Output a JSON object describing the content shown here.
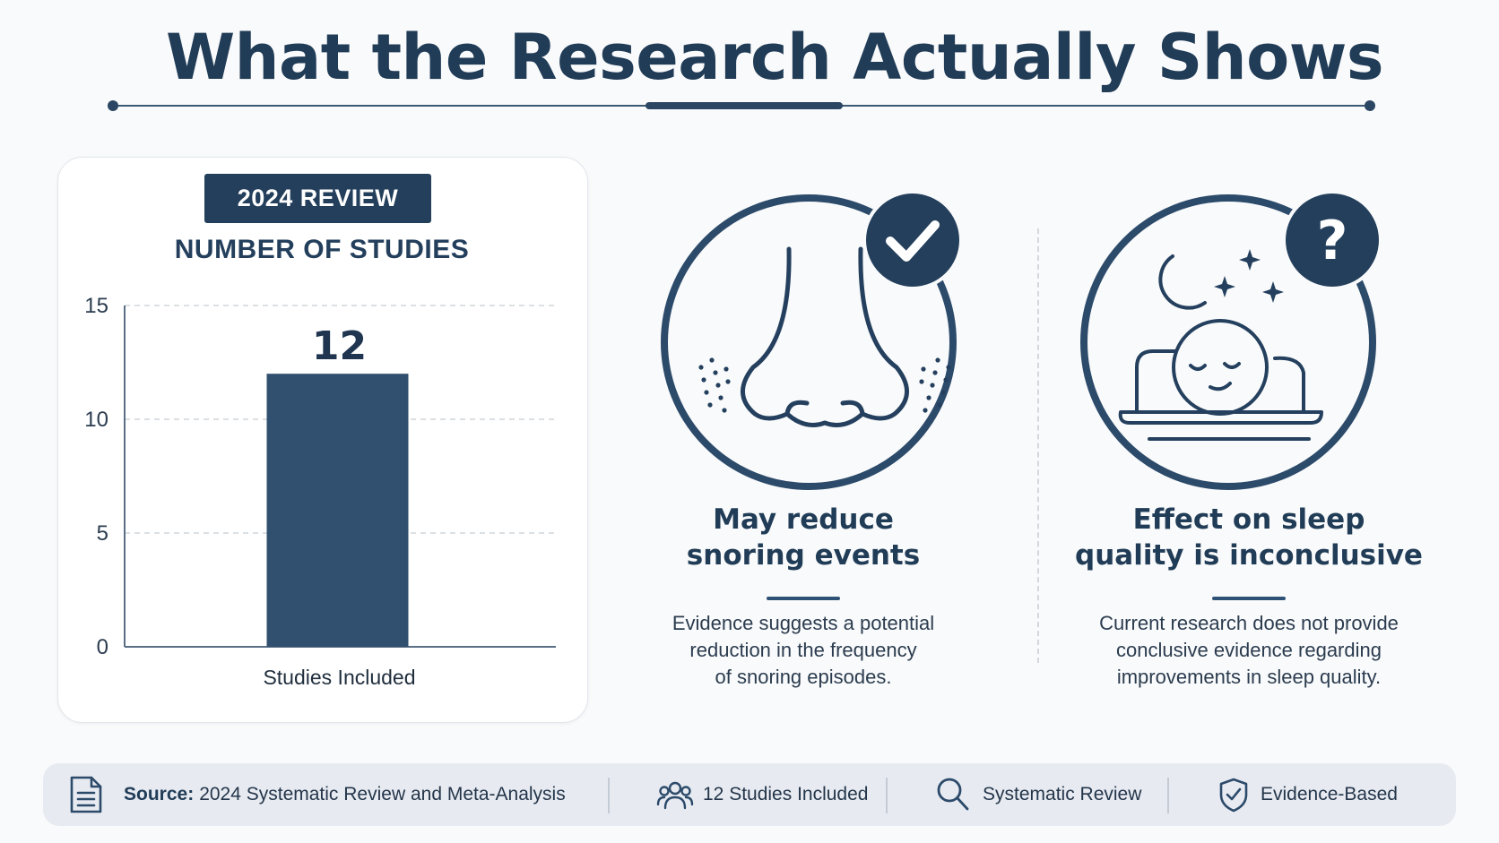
{
  "header": {
    "title": "What the Research Actually Shows"
  },
  "chart_card": {
    "badge": "2024 REVIEW",
    "subtitle": "NUMBER OF STUDIES"
  },
  "chart_data": {
    "type": "bar",
    "categories": [
      "Studies Included"
    ],
    "values": [
      12
    ],
    "data_labels": [
      "12"
    ],
    "title": "NUMBER OF STUDIES",
    "ylim": [
      0,
      15
    ],
    "yticks": [
      0,
      5,
      10,
      15
    ],
    "grid": true,
    "color": "#31506f"
  },
  "findings": [
    {
      "icon": "nose-icon",
      "status_icon": "check-icon",
      "title_line1": "May reduce",
      "title_line2": "snoring events",
      "desc_line1": "Evidence suggests a potential",
      "desc_line2": "reduction in the frequency",
      "desc_line3": "of snoring episodes."
    },
    {
      "icon": "sleeping-person-icon",
      "status_icon": "question-icon",
      "title_line1": "Effect on sleep",
      "title_line2": "quality is inconclusive",
      "desc_line1": "Current research does not provide",
      "desc_line2": "conclusive evidence regarding",
      "desc_line3": "improvements in sleep quality."
    }
  ],
  "footer": {
    "source_label": "Source:",
    "source_text": "2024 Systematic Review and Meta-Analysis",
    "studies": "12 Studies Included",
    "method": "Systematic Review",
    "evidence": "Evidence-Based"
  },
  "colors": {
    "primary": "#213c57",
    "bar": "#31506f",
    "background": "#f9fafb",
    "footer_bg": "#e7ebf1"
  }
}
